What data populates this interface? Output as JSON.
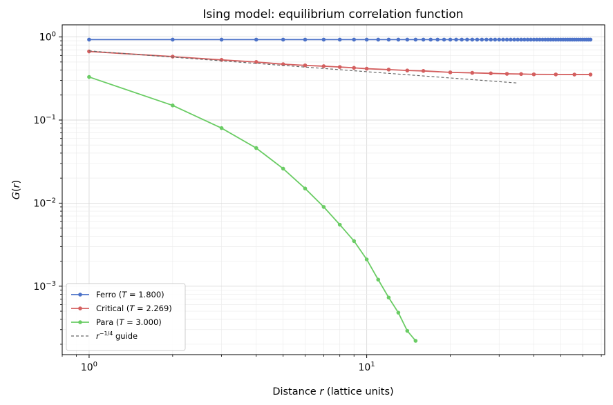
{
  "chart_data": {
    "type": "line",
    "title": "Ising model: equilibrium correlation function",
    "xlabel": "Distance r (lattice units)",
    "ylabel": "G(r)",
    "xscale": "log",
    "yscale": "log",
    "xlim": [
      0.8,
      72
    ],
    "ylim": [
      0.00015,
      1.4
    ],
    "xticks": [
      {
        "value": 1,
        "base": "10",
        "exp": "0"
      },
      {
        "value": 10,
        "base": "10",
        "exp": "1"
      }
    ],
    "yticks": [
      {
        "value": 1,
        "base": "10",
        "exp": "0"
      },
      {
        "value": 0.1,
        "base": "10",
        "exp": "−1"
      },
      {
        "value": 0.01,
        "base": "10",
        "exp": "−2"
      },
      {
        "value": 0.001,
        "base": "10",
        "exp": "−3"
      }
    ],
    "grid": true,
    "legend_position": "lower-left",
    "series": [
      {
        "name": "Ferro (T = 1.800)",
        "legend": {
          "pre": "Ferro (",
          "var": "T",
          "post": " = 1.800)"
        },
        "color": "#4c72c8",
        "r_start": 1,
        "r_end": 64,
        "G_start": 0.93,
        "G_end": 0.93
      },
      {
        "name": "Critical (T = 2.269)",
        "legend": {
          "pre": "Critical (",
          "var": "T",
          "post": " = 2.269)"
        },
        "color": "#d45f5f",
        "x": [
          1,
          2,
          3,
          4,
          5,
          6,
          7,
          8,
          9,
          10,
          12,
          14,
          16,
          20,
          24,
          28,
          32,
          36,
          40,
          48,
          56,
          64
        ],
        "y": [
          0.67,
          0.58,
          0.53,
          0.5,
          0.47,
          0.455,
          0.445,
          0.435,
          0.425,
          0.415,
          0.405,
          0.395,
          0.39,
          0.375,
          0.37,
          0.365,
          0.36,
          0.358,
          0.355,
          0.354,
          0.353,
          0.353
        ]
      },
      {
        "name": "Para (T = 3.000)",
        "legend": {
          "pre": "Para (",
          "var": "T",
          "post": " = 3.000)"
        },
        "color": "#6acc64",
        "x": [
          1,
          2,
          3,
          4,
          5,
          6,
          7,
          8,
          9,
          10,
          11,
          12,
          13,
          14,
          15
        ],
        "y": [
          0.33,
          0.15,
          0.08,
          0.046,
          0.026,
          0.015,
          0.009,
          0.0055,
          0.0035,
          0.0021,
          0.0012,
          0.00073,
          0.00048,
          0.00029,
          0.00022
        ]
      },
      {
        "name": "r^-1/4 guide",
        "legend": {
          "var": "r",
          "sup": "−1/4",
          "post": " guide"
        },
        "color": "#666666",
        "dashed": true,
        "x": [
          1,
          35
        ],
        "y": [
          0.68,
          0.279
        ]
      }
    ]
  }
}
